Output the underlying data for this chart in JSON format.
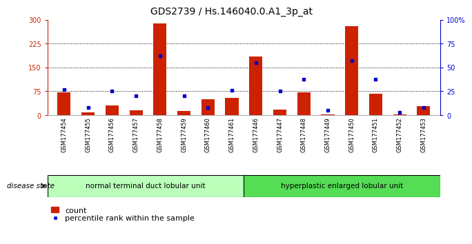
{
  "title": "GDS2739 / Hs.146040.0.A1_3p_at",
  "samples": [
    "GSM177454",
    "GSM177455",
    "GSM177456",
    "GSM177457",
    "GSM177458",
    "GSM177459",
    "GSM177460",
    "GSM177461",
    "GSM177446",
    "GSM177447",
    "GSM177448",
    "GSM177449",
    "GSM177450",
    "GSM177451",
    "GSM177452",
    "GSM177453"
  ],
  "counts": [
    72,
    8,
    30,
    15,
    290,
    12,
    50,
    55,
    185,
    18,
    72,
    3,
    280,
    68,
    3,
    28
  ],
  "percentiles": [
    27,
    8,
    25,
    20,
    62,
    20,
    8,
    26,
    55,
    25,
    38,
    5,
    57,
    38,
    3,
    8
  ],
  "group1_label": "normal terminal duct lobular unit",
  "group2_label": "hyperplastic enlarged lobular unit",
  "group1_count": 8,
  "group2_count": 8,
  "disease_state_label": "disease state",
  "ylim_left": [
    0,
    300
  ],
  "ylim_right": [
    0,
    100
  ],
  "yticks_left": [
    0,
    75,
    150,
    225,
    300
  ],
  "yticks_right": [
    0,
    25,
    50,
    75,
    100
  ],
  "bar_color": "#cc2200",
  "dot_color": "#0000cc",
  "group1_bg": "#bbffbb",
  "group2_bg": "#55dd55",
  "left_axis_color": "#cc2200",
  "right_axis_color": "#0000cc",
  "title_fontsize": 10,
  "tick_fontsize": 7,
  "legend_fontsize": 8,
  "xtick_fontsize": 6
}
